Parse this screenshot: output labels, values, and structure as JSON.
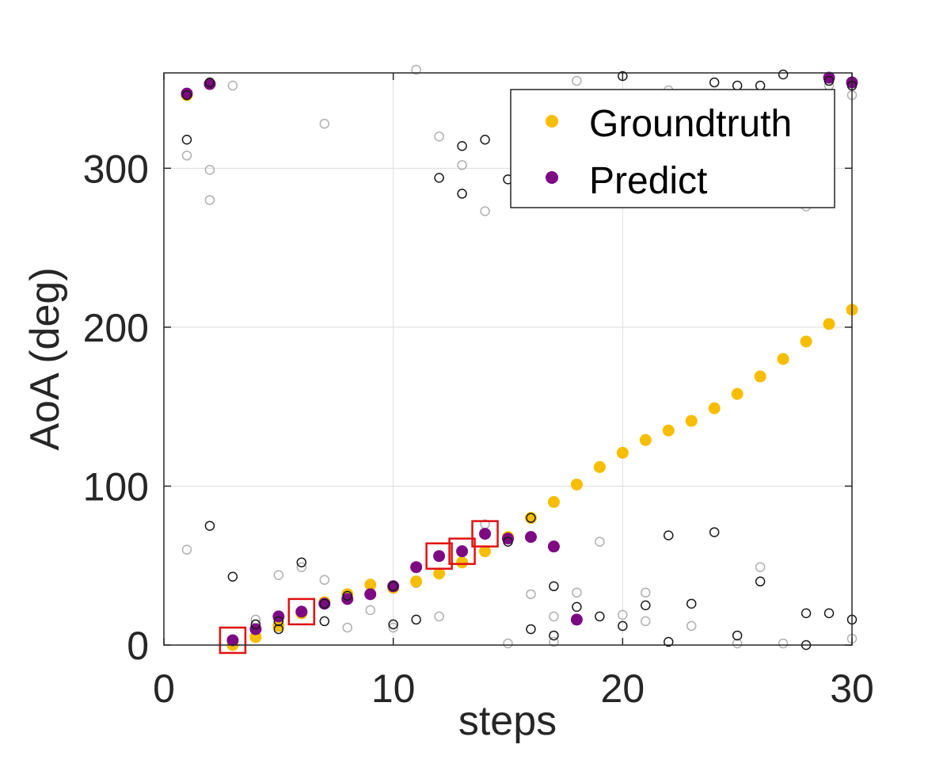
{
  "chart_data": {
    "type": "scatter",
    "xlabel": "steps",
    "ylabel": "AoA (deg)",
    "xlim": [
      0,
      30
    ],
    "ylim": [
      0,
      360
    ],
    "x_ticks": [
      "0",
      "10",
      "20",
      "30"
    ],
    "y_ticks": [
      "0",
      "100",
      "200",
      "300"
    ],
    "grid": true,
    "legend_position": "top-right",
    "colors": {
      "groundtruth": "#f7bd00",
      "predict": "#7d0a82",
      "candidate_dark": "#1a1a1a",
      "candidate_light": "#b0b0b0",
      "highlight": "#e01010"
    },
    "series": [
      {
        "name": "Groundtruth",
        "x": [
          1,
          2,
          3,
          4,
          5,
          6,
          7,
          8,
          9,
          10,
          11,
          12,
          13,
          14,
          15,
          16,
          17,
          18,
          19,
          20,
          21,
          22,
          23,
          24,
          25,
          26,
          27,
          28,
          29,
          30
        ],
        "y": [
          346,
          353,
          0,
          5,
          12,
          20,
          27,
          32,
          38,
          36,
          40,
          45,
          52,
          59,
          68,
          80,
          90,
          101,
          112,
          121,
          129,
          135,
          141,
          149,
          158,
          169,
          180,
          191,
          202,
          211
        ]
      },
      {
        "name": "Predict",
        "x": [
          1,
          2,
          3,
          4,
          5,
          6,
          7,
          8,
          9,
          10,
          11,
          12,
          13,
          14,
          15,
          16,
          17,
          18,
          29,
          30
        ],
        "y": [
          347,
          353,
          3,
          10,
          18,
          21,
          26,
          29,
          32,
          37,
          49,
          56,
          59,
          70,
          67,
          68,
          62,
          16,
          357,
          354
        ]
      }
    ],
    "candidates_dark": {
      "x": [
        1,
        1,
        2,
        2,
        3,
        4,
        5,
        5,
        6,
        7,
        7,
        8,
        10,
        10,
        11,
        12,
        13,
        13,
        14,
        15,
        15,
        16,
        16,
        17,
        17,
        18,
        19,
        20,
        20,
        21,
        22,
        22,
        23,
        24,
        24,
        25,
        25,
        26,
        26,
        27,
        28,
        28,
        29,
        29,
        30,
        30
      ],
      "y": [
        318,
        346,
        75,
        354,
        43,
        13,
        10,
        15,
        52,
        26,
        15,
        31,
        13,
        37,
        16,
        294,
        284,
        314,
        318,
        293,
        65,
        10,
        80,
        6,
        37,
        24,
        18,
        12,
        358,
        25,
        2,
        69,
        26,
        71,
        354,
        6,
        352,
        40,
        352,
        359,
        0,
        20,
        20,
        355,
        16,
        352
      ]
    },
    "candidates_light": {
      "x": [
        1,
        1,
        2,
        2,
        3,
        4,
        5,
        6,
        6,
        7,
        7,
        8,
        9,
        10,
        11,
        11,
        12,
        12,
        13,
        14,
        14,
        15,
        16,
        17,
        17,
        18,
        18,
        19,
        20,
        21,
        21,
        22,
        23,
        24,
        25,
        26,
        27,
        28,
        29,
        30,
        30
      ],
      "y": [
        60,
        308,
        280,
        299,
        352,
        16,
        44,
        49,
        20,
        328,
        41,
        11,
        22,
        11,
        362,
        39,
        320,
        18,
        302,
        273,
        76,
        1,
        32,
        18,
        2,
        355,
        33,
        65,
        19,
        33,
        15,
        349,
        12,
        347,
        1,
        49,
        1,
        276,
        352,
        4,
        346
      ]
    },
    "highlighted_points": {
      "x": [
        3,
        6,
        12,
        13,
        14
      ],
      "y": [
        3,
        21,
        56,
        59,
        70
      ]
    }
  }
}
